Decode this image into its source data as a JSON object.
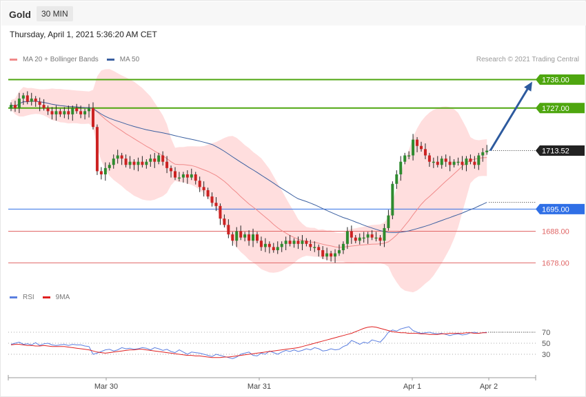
{
  "header": {
    "symbol": "Gold",
    "timeframe": "30 MIN",
    "datetime": "Thursday, April 1, 2021 5:36:20 AM CET"
  },
  "legend": {
    "ma20_label": "MA 20 + Bollinger Bands",
    "ma50_label": "MA 50",
    "copyright": "Research © 2021 Trading Central"
  },
  "rsi_legend": {
    "rsi_label": "RSI",
    "ma_label": "9MA"
  },
  "colors": {
    "bull": "#2e8b2e",
    "bear": "#cc2222",
    "bollinger": "#ffdede",
    "ma20": "#f08a8a",
    "ma50": "#3a5fa0",
    "target": "#4ea60f",
    "pivot": "#2f6fe6",
    "support": "#e06666",
    "arrow": "#2d5a9e",
    "rsi": "#5b7fe0",
    "rsi_ma": "#e02020"
  },
  "chart_data": {
    "type": "candlestick",
    "price_axis_range": [
      1670,
      1742
    ],
    "x_labels": [
      "Mar 30",
      "Mar 31",
      "Apr 1",
      "Apr 2"
    ],
    "levels": [
      {
        "value": 1736.0,
        "label": "1736.00",
        "kind": "target"
      },
      {
        "value": 1727.0,
        "label": "1727.00",
        "kind": "target"
      },
      {
        "value": 1713.52,
        "label": "1713.52",
        "kind": "last"
      },
      {
        "value": 1695.0,
        "label": "1695.00",
        "kind": "pivot"
      },
      {
        "value": 1688.0,
        "label": "1688.00",
        "kind": "support"
      },
      {
        "value": 1678.0,
        "label": "1678.00",
        "kind": "support"
      }
    ],
    "close": [
      1728,
      1727,
      1730,
      1731,
      1729,
      1730,
      1729,
      1728,
      1727,
      1726,
      1725,
      1726,
      1725,
      1726,
      1725,
      1727,
      1726,
      1725,
      1726,
      1727,
      1721,
      1707,
      1706,
      1708,
      1709,
      1711,
      1712,
      1711,
      1709,
      1710,
      1709,
      1710,
      1709,
      1710,
      1711,
      1710,
      1712,
      1710,
      1708,
      1707,
      1705,
      1705,
      1706,
      1705,
      1706,
      1704,
      1702,
      1701,
      1699,
      1697,
      1696,
      1692,
      1690,
      1687,
      1685,
      1688,
      1686,
      1687,
      1685,
      1687,
      1685,
      1683,
      1684,
      1683,
      1682,
      1683,
      1684,
      1685,
      1684,
      1685,
      1684,
      1685,
      1684,
      1683,
      1683,
      1682,
      1680,
      1681,
      1680,
      1681,
      1682,
      1684,
      1688,
      1686,
      1685,
      1686,
      1686,
      1687,
      1686,
      1686,
      1685,
      1689,
      1693,
      1703,
      1706,
      1710,
      1712,
      1712,
      1717,
      1715,
      1714,
      1712,
      1710,
      1710,
      1709,
      1711,
      1710,
      1709,
      1710,
      1710,
      1709,
      1711,
      1710,
      1709,
      1712,
      1713,
      1713.52
    ],
    "rsi_levels": [
      70,
      50,
      30
    ],
    "rsi": [
      48,
      50,
      52,
      48,
      49,
      47,
      51,
      46,
      49,
      50,
      47,
      46,
      47,
      48,
      46,
      48,
      47,
      47,
      45,
      44,
      30,
      32,
      35,
      38,
      39,
      36,
      38,
      42,
      40,
      41,
      39,
      40,
      42,
      41,
      38,
      42,
      40,
      37,
      39,
      35,
      33,
      38,
      34,
      30,
      34,
      33,
      32,
      30,
      28,
      26,
      30,
      28,
      26,
      24,
      22,
      25,
      30,
      32,
      34,
      28,
      27,
      32,
      30,
      36,
      33,
      30,
      34,
      37,
      35,
      38,
      35,
      37,
      40,
      38,
      42,
      40,
      36,
      37,
      40,
      38,
      39,
      44,
      47,
      55,
      52,
      48,
      52,
      50,
      56,
      54,
      52,
      60,
      70,
      74,
      72,
      76,
      78,
      80,
      73,
      70,
      68,
      69,
      70,
      68,
      67,
      68,
      66,
      64,
      66,
      67,
      65,
      66,
      69,
      70,
      68,
      69,
      70
    ],
    "rsi_ma": [
      47,
      48,
      48,
      47,
      46,
      46,
      45,
      45,
      46,
      45,
      44,
      44,
      44,
      44,
      43,
      42,
      41,
      40,
      39,
      38,
      36,
      34,
      33,
      32,
      33,
      34,
      35,
      36,
      37,
      38,
      38,
      39,
      39,
      38,
      37,
      36,
      35,
      34,
      33,
      32,
      31,
      30,
      29,
      28,
      28,
      27,
      27,
      26,
      25,
      24,
      24,
      24,
      25,
      25,
      26,
      27,
      28,
      29,
      30,
      31,
      32,
      33,
      34,
      35,
      36,
      37,
      38,
      39,
      40,
      41,
      42,
      44,
      46,
      48,
      50,
      52,
      54,
      56,
      58,
      60,
      62,
      64,
      66,
      68,
      71,
      74,
      77,
      79,
      80,
      79,
      77,
      75,
      73,
      71,
      70,
      69,
      69,
      68,
      68,
      68,
      67,
      67,
      66,
      66,
      66,
      67,
      67,
      68,
      68,
      68,
      68,
      69,
      69,
      68,
      68,
      69,
      69
    ]
  }
}
